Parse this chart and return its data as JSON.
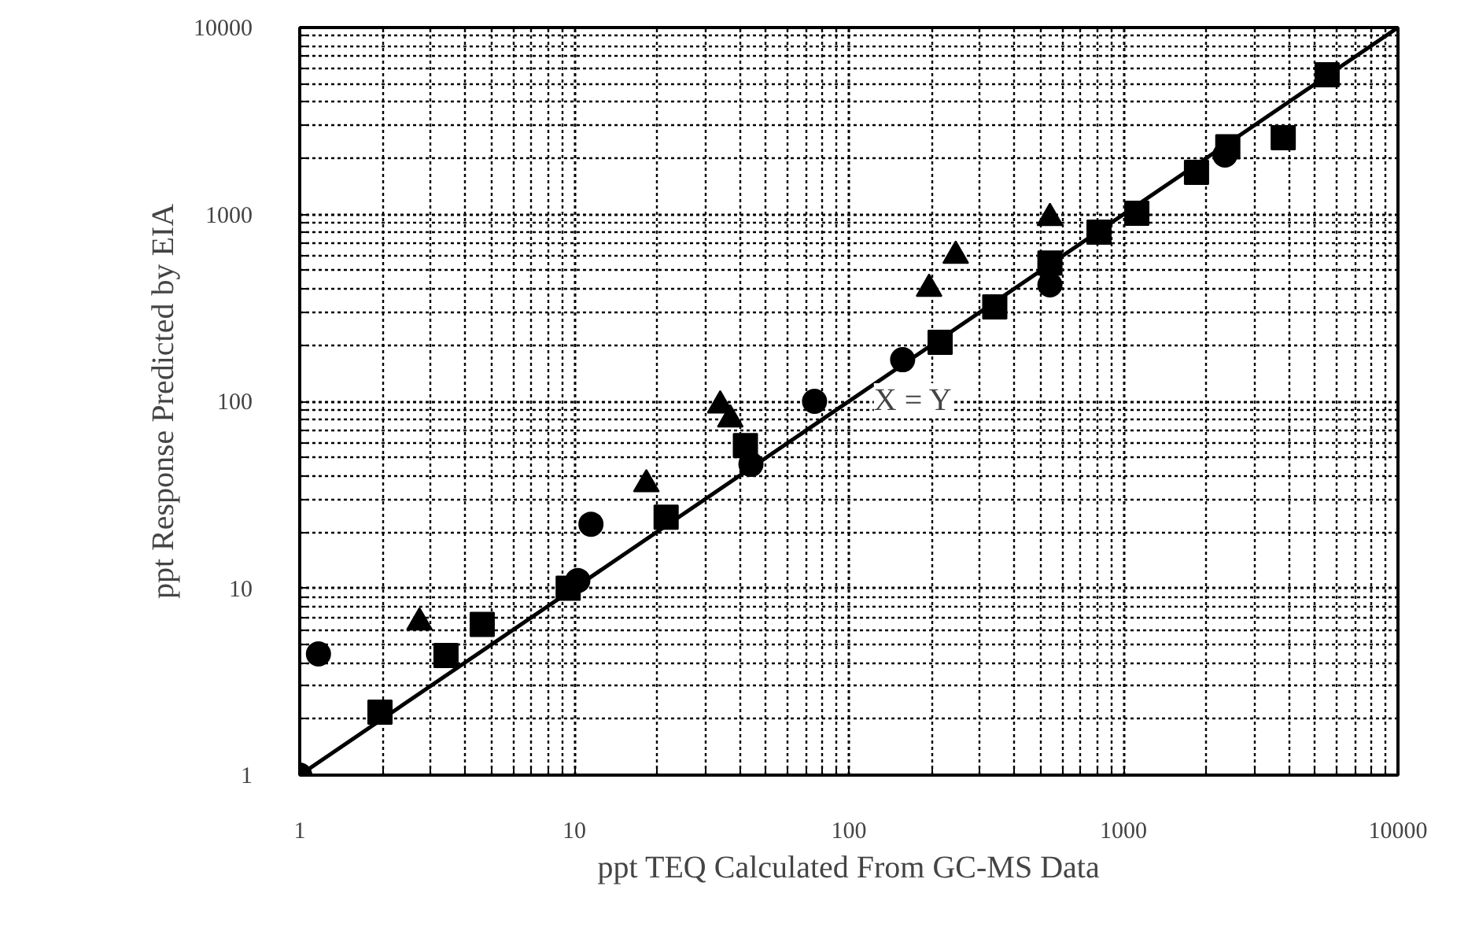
{
  "chart_data": {
    "type": "scatter",
    "xlabel": "ppt TEQ Calculated From GC-MS Data",
    "ylabel": "ppt Response Predicted by EIA",
    "log": "xy",
    "grid": true,
    "xlim": [
      1,
      10000
    ],
    "ylim": [
      1,
      10000
    ],
    "xticks": [
      1,
      10,
      100,
      1000,
      10000
    ],
    "yticks": [
      1,
      10,
      100,
      1000,
      10000
    ],
    "annotations": [
      "X = Y"
    ],
    "series": [
      {
        "marker": "circle",
        "color": "#000000",
        "x": [
          1,
          1.17,
          10.3,
          11.5,
          44,
          75,
          157,
          540,
          2344
        ],
        "values": [
          1,
          4.45,
          11,
          22,
          46,
          100,
          167,
          420,
          2080
        ]
      },
      {
        "marker": "square",
        "color": "#000000",
        "x": [
          1.96,
          3.41,
          4.62,
          9.5,
          21.6,
          42,
          215,
          340,
          540,
          815,
          1119,
          1846,
          2400,
          3820,
          5520
        ],
        "values": [
          2.17,
          4.37,
          6.4,
          10,
          24,
          58,
          207,
          320,
          550,
          804,
          1015,
          1680,
          2300,
          2575,
          5590
        ]
      },
      {
        "marker": "triangle",
        "color": "#000000",
        "x": [
          2.73,
          18.3,
          34,
          37,
          196,
          245,
          540
        ],
        "values": [
          6.56,
          36,
          95,
          80,
          400,
          601,
          957
        ]
      },
      {
        "type": "line",
        "line_style": "solid",
        "color": "#000000",
        "x": [
          1,
          10000
        ],
        "values": [
          1,
          10000
        ]
      }
    ]
  }
}
